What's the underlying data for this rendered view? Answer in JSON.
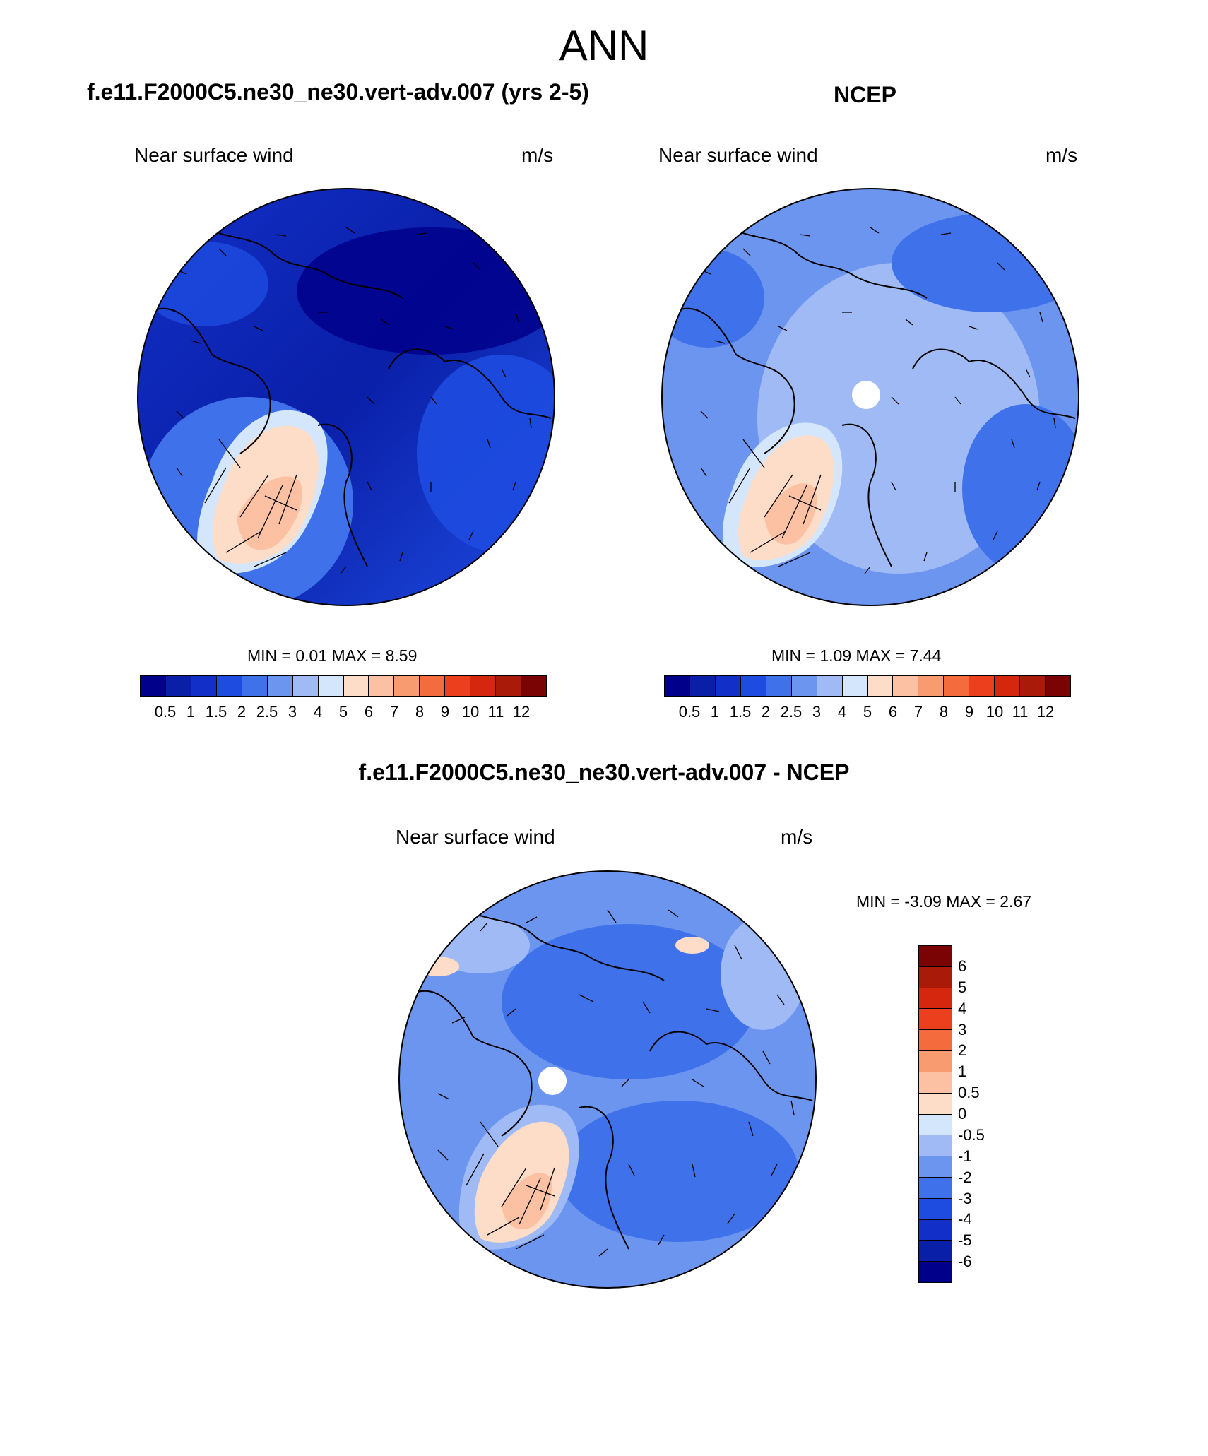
{
  "figure": {
    "main_title": "ANN"
  },
  "panels": [
    {
      "id": "model",
      "title": "f.e11.F2000C5.ne30_ne30.vert-adv.007 (yrs 2-5)",
      "variable_label": "Near surface wind",
      "units": "m/s",
      "min_label": "MIN = ",
      "min_value": "0.01",
      "max_label": "MAX = ",
      "max_value": "8.59",
      "projection": "north polar stereographic",
      "pole_hole": false,
      "dominant_level": "0.5–1.5 m/s (dark blue) over most of the Arctic Ocean; 6–8 m/s (light red) over Greenland"
    },
    {
      "id": "ncep",
      "title": "NCEP",
      "variable_label": "Near surface wind",
      "units": "m/s",
      "min_label": "MIN = ",
      "min_value": "1.09",
      "max_label": "MAX = ",
      "max_value": "7.44",
      "projection": "north polar stereographic",
      "pole_hole": true,
      "dominant_level": "2.5–4 m/s (light blue) over the Arctic Ocean; 5–7 m/s (light red) over Greenland"
    },
    {
      "id": "diff",
      "title": "f.e11.F2000C5.ne30_ne30.vert-adv.007 - NCEP",
      "variable_label": "Near surface wind",
      "units": "m/s",
      "min_label": "MIN = ",
      "min_value": "-3.09",
      "max_label": "MAX = ",
      "max_value": "2.67",
      "projection": "north polar stereographic",
      "pole_hole": true,
      "dominant_level": "-3 to -1 m/s (blue) over most areas; 0.5–1 m/s (light red) over Greenland"
    }
  ],
  "colorbars": {
    "absolute": {
      "labels": [
        "0.5",
        "1",
        "1.5",
        "2",
        "2.5",
        "3",
        "4",
        "5",
        "6",
        "7",
        "8",
        "9",
        "10",
        "11",
        "12"
      ],
      "colors": [
        "#00008a",
        "#0a1fa8",
        "#1230c8",
        "#1e4be0",
        "#3f72ea",
        "#6b95ef",
        "#9fbaf4",
        "#d4e6fb",
        "#feddc8",
        "#fcc0a2",
        "#f99b70",
        "#f46b3e",
        "#ec3f1e",
        "#d4270e",
        "#a91a08",
        "#7a0303"
      ]
    },
    "difference": {
      "labels": [
        "6",
        "5",
        "4",
        "3",
        "2",
        "1",
        "0.5",
        "0",
        "-0.5",
        "-1",
        "-2",
        "-3",
        "-4",
        "-5",
        "-6"
      ],
      "colors": [
        "#7a0303",
        "#a91a08",
        "#d4270e",
        "#ec3f1e",
        "#f46b3e",
        "#f99b70",
        "#fcc0a2",
        "#feddc8",
        "#d4e6fb",
        "#9fbaf4",
        "#6b95ef",
        "#3f72ea",
        "#1e4be0",
        "#1230c8",
        "#0a1fa8",
        "#00008a"
      ]
    }
  }
}
